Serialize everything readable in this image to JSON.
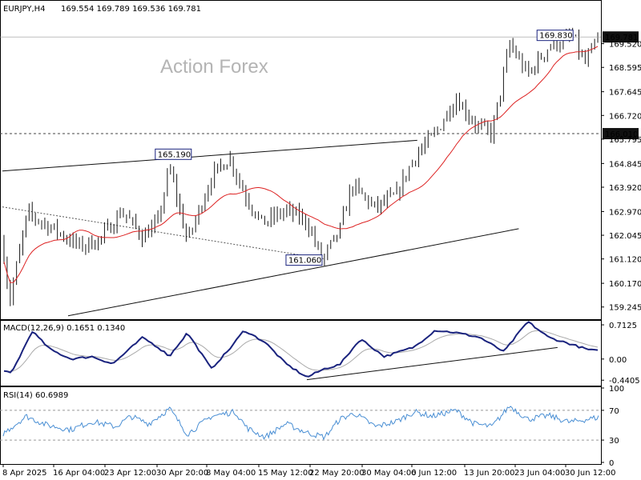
{
  "chart_data": [
    {
      "type": "candlestick",
      "title": "EURJPY,H4",
      "ohlc": {
        "open": "169.554",
        "high": "169.789",
        "low": "169.536",
        "close": "169.781"
      },
      "watermark": "Action Forex",
      "ylim": [
        158.8,
        170.6
      ],
      "y_ticks": [
        "169.520",
        "168.595",
        "167.645",
        "166.720",
        "165.795",
        "164.845",
        "163.920",
        "162.970",
        "162.045",
        "161.120",
        "160.170",
        "159.245"
      ],
      "x_ticks": [
        "8 Apr 2025",
        "16 Apr 04:00",
        "23 Apr 12:00",
        "30 Apr 20:00",
        "8 May 04:00",
        "15 May 12:00",
        "22 May 20:00",
        "30 May 04:00",
        "6 Jun 12:00",
        "13 Jun 20:00",
        "23 Jun 04:00",
        "30 Jun 12:00"
      ],
      "price_labels": [
        {
          "text": "169.781",
          "value": 169.781,
          "style": "dark"
        },
        {
          "text": "166.010",
          "value": 166.01,
          "style": "dark"
        }
      ],
      "annotations": [
        {
          "text": "165.190",
          "value": 165.19,
          "x_hour": 633
        },
        {
          "text": "161.060",
          "value": 161.06,
          "x_hour": 1071
        },
        {
          "text": "169.830",
          "value": 169.83,
          "x_hour": 1912
        }
      ],
      "key_points": [
        {
          "t_hours": 0,
          "price": 161.8
        },
        {
          "t_hours": 24,
          "price": 159.45
        },
        {
          "t_hours": 84,
          "price": 162.9
        },
        {
          "t_hours": 170,
          "price": 162.3
        },
        {
          "t_hours": 260,
          "price": 161.6
        },
        {
          "t_hours": 330,
          "price": 161.9
        },
        {
          "t_hours": 400,
          "price": 163.0
        },
        {
          "t_hours": 470,
          "price": 162.0
        },
        {
          "t_hours": 520,
          "price": 162.5
        },
        {
          "t_hours": 560,
          "price": 164.7
        },
        {
          "t_hours": 620,
          "price": 161.8
        },
        {
          "t_hours": 700,
          "price": 164.3
        },
        {
          "t_hours": 760,
          "price": 165.1
        },
        {
          "t_hours": 810,
          "price": 163.7
        },
        {
          "t_hours": 870,
          "price": 162.5
        },
        {
          "t_hours": 950,
          "price": 163.0
        },
        {
          "t_hours": 1020,
          "price": 162.6
        },
        {
          "t_hours": 1071,
          "price": 161.06
        },
        {
          "t_hours": 1130,
          "price": 162.2
        },
        {
          "t_hours": 1170,
          "price": 164.0
        },
        {
          "t_hours": 1250,
          "price": 163.1
        },
        {
          "t_hours": 1320,
          "price": 163.6
        },
        {
          "t_hours": 1380,
          "price": 165.1
        },
        {
          "t_hours": 1450,
          "price": 166.0
        },
        {
          "t_hours": 1520,
          "price": 167.4
        },
        {
          "t_hours": 1590,
          "price": 166.3
        },
        {
          "t_hours": 1640,
          "price": 166.0
        },
        {
          "t_hours": 1700,
          "price": 169.5
        },
        {
          "t_hours": 1760,
          "price": 168.3
        },
        {
          "t_hours": 1830,
          "price": 169.4
        },
        {
          "t_hours": 1912,
          "price": 169.83
        },
        {
          "t_hours": 1950,
          "price": 168.7
        },
        {
          "t_hours": 2000,
          "price": 169.78
        }
      ],
      "series": [
        {
          "name": "",
          "kind": "candles",
          "color": "#1b1b1b"
        },
        {
          "name": "",
          "kind": "moving-average",
          "color": "#dd2222"
        }
      ],
      "trendlines": [
        {
          "from": {
            "t_hours": 0,
            "price": 164.55
          },
          "to": {
            "t_hours": 1390,
            "price": 165.75
          },
          "style": "solid"
        },
        {
          "from": {
            "t_hours": 220,
            "price": 158.9
          },
          "to": {
            "t_hours": 1730,
            "price": 162.3
          },
          "style": "solid"
        },
        {
          "from": {
            "t_hours": 0,
            "price": 163.15
          },
          "to": {
            "t_hours": 1080,
            "price": 161.12
          },
          "style": "dotted"
        }
      ],
      "grid": false
    },
    {
      "type": "line",
      "title": "MACD(12,26,9) 0.1651 0.1340",
      "ylim": [
        -0.52,
        0.78
      ],
      "y_ticks": [
        "0.7125",
        "0.00",
        "-0.4405"
      ],
      "key_points": [
        {
          "t_hours": 0,
          "macd": -0.25
        },
        {
          "t_hours": 30,
          "macd": -0.3
        },
        {
          "t_hours": 100,
          "macd": 0.58
        },
        {
          "t_hours": 160,
          "macd": 0.2
        },
        {
          "t_hours": 230,
          "macd": 0.0
        },
        {
          "t_hours": 300,
          "macd": 0.05
        },
        {
          "t_hours": 370,
          "macd": -0.1
        },
        {
          "t_hours": 470,
          "macd": 0.45
        },
        {
          "t_hours": 520,
          "macd": 0.25
        },
        {
          "t_hours": 560,
          "macd": 0.06
        },
        {
          "t_hours": 620,
          "macd": 0.55
        },
        {
          "t_hours": 700,
          "macd": -0.2
        },
        {
          "t_hours": 760,
          "macd": 0.2
        },
        {
          "t_hours": 810,
          "macd": 0.6
        },
        {
          "t_hours": 880,
          "macd": 0.35
        },
        {
          "t_hours": 950,
          "macd": -0.1
        },
        {
          "t_hours": 1020,
          "macd": -0.38
        },
        {
          "t_hours": 1080,
          "macd": -0.2
        },
        {
          "t_hours": 1130,
          "macd": -0.12
        },
        {
          "t_hours": 1200,
          "macd": 0.42
        },
        {
          "t_hours": 1280,
          "macd": 0.05
        },
        {
          "t_hours": 1380,
          "macd": 0.25
        },
        {
          "t_hours": 1450,
          "macd": 0.6
        },
        {
          "t_hours": 1520,
          "macd": 0.55
        },
        {
          "t_hours": 1600,
          "macd": 0.45
        },
        {
          "t_hours": 1680,
          "macd": 0.15
        },
        {
          "t_hours": 1760,
          "macd": 0.78
        },
        {
          "t_hours": 1830,
          "macd": 0.45
        },
        {
          "t_hours": 1900,
          "macd": 0.32
        },
        {
          "t_hours": 1960,
          "macd": 0.2
        },
        {
          "t_hours": 2000,
          "macd": 0.165
        }
      ],
      "series": [
        {
          "name": "",
          "kind": "macd",
          "color": "#1a237e"
        },
        {
          "name": "",
          "kind": "signal",
          "color": "#aaaaaa"
        }
      ],
      "trendlines": [
        {
          "from": {
            "t_hours": 1020,
            "value": -0.43
          },
          "to": {
            "t_hours": 1860,
            "value": 0.24
          },
          "style": "solid"
        }
      ]
    },
    {
      "type": "line",
      "title": "RSI(14) 60.6989",
      "ylim": [
        0,
        100
      ],
      "y_ticks": [
        "100",
        "70",
        "30",
        "0"
      ],
      "levels": [
        70,
        30
      ],
      "key_points": [
        {
          "t_hours": 0,
          "rsi": 38
        },
        {
          "t_hours": 80,
          "rsi": 62
        },
        {
          "t_hours": 150,
          "rsi": 50
        },
        {
          "t_hours": 230,
          "rsi": 44
        },
        {
          "t_hours": 300,
          "rsi": 55
        },
        {
          "t_hours": 380,
          "rsi": 48
        },
        {
          "t_hours": 430,
          "rsi": 62
        },
        {
          "t_hours": 490,
          "rsi": 52
        },
        {
          "t_hours": 560,
          "rsi": 72
        },
        {
          "t_hours": 620,
          "rsi": 38
        },
        {
          "t_hours": 700,
          "rsi": 62
        },
        {
          "t_hours": 780,
          "rsi": 68
        },
        {
          "t_hours": 820,
          "rsi": 46
        },
        {
          "t_hours": 880,
          "rsi": 34
        },
        {
          "t_hours": 950,
          "rsi": 52
        },
        {
          "t_hours": 1020,
          "rsi": 40
        },
        {
          "t_hours": 1080,
          "rsi": 34
        },
        {
          "t_hours": 1130,
          "rsi": 58
        },
        {
          "t_hours": 1180,
          "rsi": 66
        },
        {
          "t_hours": 1250,
          "rsi": 48
        },
        {
          "t_hours": 1320,
          "rsi": 55
        },
        {
          "t_hours": 1380,
          "rsi": 68
        },
        {
          "t_hours": 1440,
          "rsi": 62
        },
        {
          "t_hours": 1520,
          "rsi": 70
        },
        {
          "t_hours": 1580,
          "rsi": 52
        },
        {
          "t_hours": 1640,
          "rsi": 48
        },
        {
          "t_hours": 1700,
          "rsi": 76
        },
        {
          "t_hours": 1760,
          "rsi": 58
        },
        {
          "t_hours": 1830,
          "rsi": 63
        },
        {
          "t_hours": 1900,
          "rsi": 54
        },
        {
          "t_hours": 1960,
          "rsi": 58
        },
        {
          "t_hours": 2000,
          "rsi": 60.7
        }
      ],
      "series": [
        {
          "name": "",
          "kind": "rsi",
          "color": "#4a8fd4"
        }
      ]
    }
  ]
}
